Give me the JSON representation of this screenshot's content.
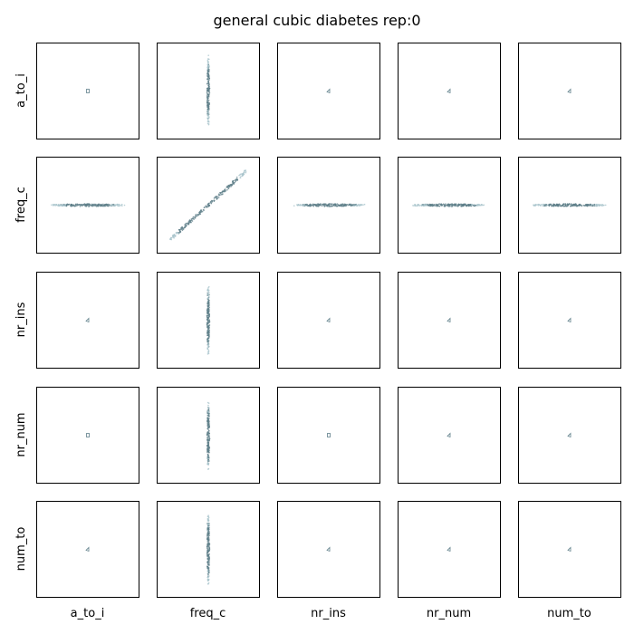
{
  "figure": {
    "title": "general cubic diabetes rep:0"
  },
  "chart_data": {
    "type": "scatter",
    "title": "general cubic diabetes rep:0",
    "variables": [
      "a_to_i",
      "freq_c",
      "nr_ins",
      "nr_num",
      "num_to"
    ],
    "row_labels": [
      "a_to_i",
      "freq_c",
      "nr_ins",
      "nr_num",
      "num_to"
    ],
    "col_labels": [
      "a_to_i",
      "freq_c",
      "nr_ins",
      "nr_num",
      "num_to"
    ],
    "grid": false,
    "ticks": false,
    "colors": {
      "cloud_main": "#5f7f8a",
      "cloud_edge": "#a9c4cc",
      "frame": "#000000"
    },
    "panels": [
      [
        {
          "shape": "dot"
        },
        {
          "shape": "vertical"
        },
        {
          "shape": "tiny"
        },
        {
          "shape": "tiny"
        },
        {
          "shape": "tiny"
        }
      ],
      [
        {
          "shape": "horizontal"
        },
        {
          "shape": "diagonal"
        },
        {
          "shape": "horizontal"
        },
        {
          "shape": "horizontal"
        },
        {
          "shape": "horizontal"
        }
      ],
      [
        {
          "shape": "tiny"
        },
        {
          "shape": "vertical"
        },
        {
          "shape": "tiny"
        },
        {
          "shape": "tiny"
        },
        {
          "shape": "tiny"
        }
      ],
      [
        {
          "shape": "dot"
        },
        {
          "shape": "vertical"
        },
        {
          "shape": "dot"
        },
        {
          "shape": "tiny"
        },
        {
          "shape": "tiny"
        }
      ],
      [
        {
          "shape": "tiny"
        },
        {
          "shape": "vertical"
        },
        {
          "shape": "tiny"
        },
        {
          "shape": "tiny"
        },
        {
          "shape": "tiny"
        }
      ]
    ]
  }
}
